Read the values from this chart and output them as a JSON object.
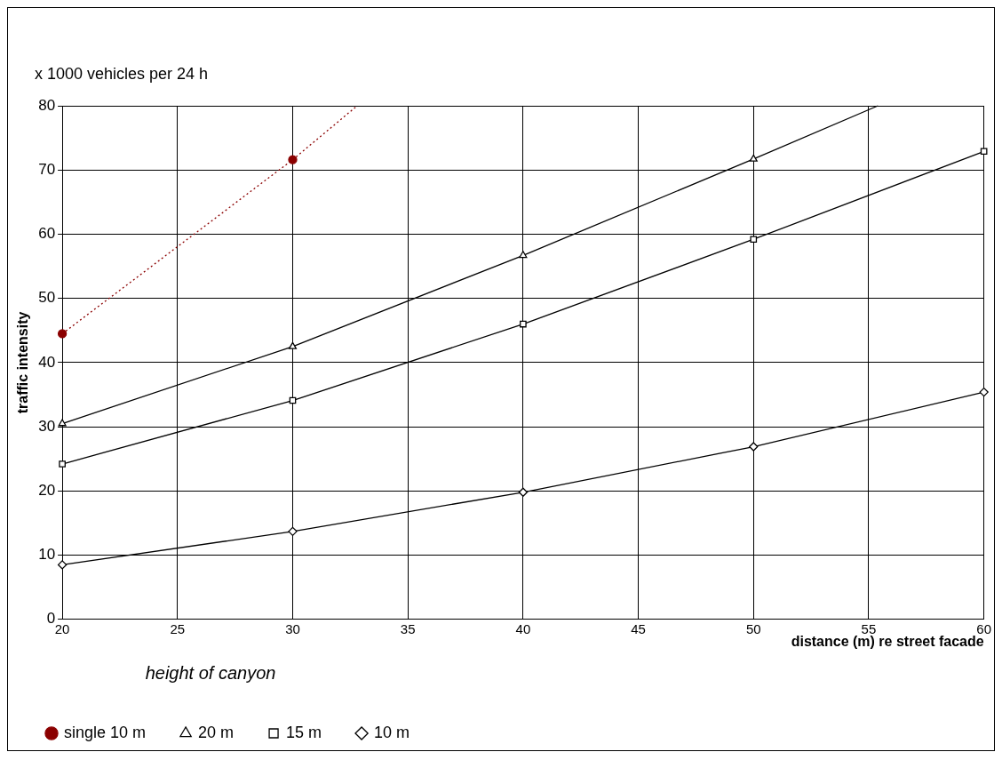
{
  "chart_data": {
    "type": "line",
    "ylabel": "traffic intensity",
    "xlabel": "distance (m) re street facade",
    "legend_title": "height of canyon",
    "annotations": [
      "x 1000 vehicles per 24 h"
    ],
    "xlim": [
      20,
      60
    ],
    "xticks": [
      20,
      25,
      30,
      35,
      40,
      45,
      50,
      55,
      60
    ],
    "ylim": [
      0,
      80
    ],
    "yticks": [
      0,
      10,
      20,
      30,
      40,
      50,
      60,
      70,
      80
    ],
    "grid": true,
    "legend": "bottom left",
    "series": [
      {
        "name": "single 10 m",
        "color": "#8b0000",
        "marker": "circle",
        "line_style": "dotted",
        "x": [
          20,
          30,
          32.8
        ],
        "values": [
          44.5,
          71.6,
          80
        ]
      },
      {
        "name": "20 m",
        "color": "#000000",
        "marker": "triangle",
        "line_style": "solid",
        "x": [
          20,
          30,
          40,
          50,
          55.4
        ],
        "values": [
          30.5,
          42.5,
          56.7,
          71.7,
          80
        ]
      },
      {
        "name": "15 m",
        "color": "#000000",
        "marker": "square",
        "line_style": "solid",
        "x": [
          20,
          30,
          40,
          50,
          60
        ],
        "values": [
          24.2,
          34.1,
          46.0,
          59.2,
          72.9
        ]
      },
      {
        "name": "10 m",
        "color": "#000000",
        "marker": "diamond",
        "line_style": "solid",
        "x": [
          20,
          30,
          40,
          50,
          60
        ],
        "values": [
          8.5,
          13.7,
          19.8,
          26.9,
          35.4
        ]
      }
    ]
  }
}
